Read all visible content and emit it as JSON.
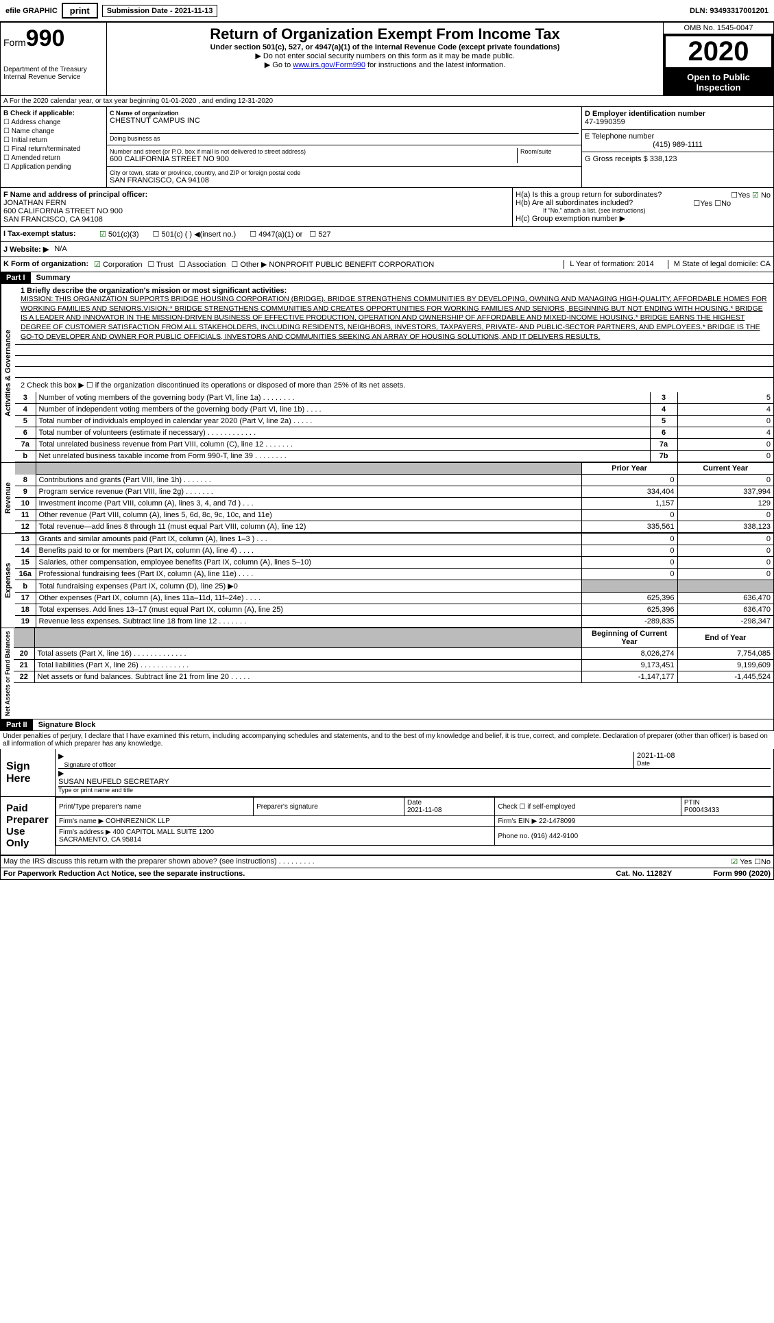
{
  "topbar": {
    "efile": "efile GRAPHIC",
    "print": "print",
    "sub_label": "Submission Date - 2021-11-13",
    "dln": "DLN: 93493317001201"
  },
  "header": {
    "form_prefix": "Form",
    "form_num": "990",
    "dept": "Department of the Treasury\nInternal Revenue Service",
    "title": "Return of Organization Exempt From Income Tax",
    "subtitle": "Under section 501(c), 527, or 4947(a)(1) of the Internal Revenue Code (except private foundations)",
    "note1": "▶ Do not enter social security numbers on this form as it may be made public.",
    "note2_pre": "▶ Go to ",
    "note2_link": "www.irs.gov/Form990",
    "note2_post": " for instructions and the latest information.",
    "omb": "OMB No. 1545-0047",
    "year": "2020",
    "open": "Open to Public Inspection"
  },
  "section_a": "A For the 2020 calendar year, or tax year beginning 01-01-2020   , and ending 12-31-2020",
  "col_b": {
    "label": "B Check if applicable:",
    "items": [
      "Address change",
      "Name change",
      "Initial return",
      "Final return/terminated",
      "Amended return",
      "Application pending"
    ]
  },
  "col_c": {
    "name_label": "C Name of organization",
    "name": "CHESTNUT CAMPUS INC",
    "dba_label": "Doing business as",
    "addr_label": "Number and street (or P.O. box if mail is not delivered to street address)",
    "addr": "600 CALIFORNIA STREET NO 900",
    "room_label": "Room/suite",
    "city_label": "City or town, state or province, country, and ZIP or foreign postal code",
    "city": "SAN FRANCISCO, CA  94108"
  },
  "col_d": {
    "ein_label": "D Employer identification number",
    "ein": "47-1990359",
    "phone_label": "E Telephone number",
    "phone": "(415) 989-1111",
    "gross_label": "G Gross receipts $ 338,123"
  },
  "f_section": {
    "label": "F  Name and address of principal officer:",
    "name": "JONATHAN FERN",
    "addr1": "600 CALIFORNIA STREET NO 900",
    "addr2": "SAN FRANCISCO, CA  94108"
  },
  "h_section": {
    "ha": "H(a)  Is this a group return for subordinates?",
    "hb": "H(b)  Are all subordinates included?",
    "hb_note": "If \"No,\" attach a list. (see instructions)",
    "hc": "H(c)  Group exemption number ▶",
    "yes": "Yes",
    "no": "No"
  },
  "status": {
    "label": "I    Tax-exempt status:",
    "opts": [
      "501(c)(3)",
      "501(c) (  ) ◀(insert no.)",
      "4947(a)(1) or",
      "527"
    ]
  },
  "website": {
    "label": "J   Website: ▶",
    "value": "N/A"
  },
  "k_org": {
    "label": "K Form of organization:",
    "corp": "Corporation",
    "trust": "Trust",
    "assoc": "Association",
    "other": "Other ▶",
    "other_val": "NONPROFIT PUBLIC BENEFIT CORPORATION",
    "l_label": "L Year of formation: 2014",
    "m_label": "M State of legal domicile: CA"
  },
  "part1": {
    "header": "Part I",
    "title": "Summary",
    "mission_label": "1   Briefly describe the organization's mission or most significant activities:",
    "mission": "MISSION: THIS ORGANIZATION SUPPORTS BRIDGE HOUSING CORPORATION (BRIDGE). BRIDGE STRENGTHENS COMMUNITIES BY DEVELOPING, OWNING AND MANAGING HIGH-QUALITY, AFFORDABLE HOMES FOR WORKING FAMILIES AND SENIORS.VISION:* BRIDGE STRENGTHENS COMMUNITIES AND CREATES OPPORTUNITIES FOR WORKING FAMILIES AND SENIORS, BEGINNING BUT NOT ENDING WITH HOUSING.* BRIDGE IS A LEADER AND INNOVATOR IN THE MISSION-DRIVEN BUSINESS OF EFFECTIVE PRODUCTION, OPERATION AND OWNERSHIP OF AFFORDABLE AND MIXED-INCOME HOUSING.* BRIDGE EARNS THE HIGHEST DEGREE OF CUSTOMER SATISFACTION FROM ALL STAKEHOLDERS, INCLUDING RESIDENTS, NEIGHBORS, INVESTORS, TAXPAYERS, PRIVATE- AND PUBLIC-SECTOR PARTNERS, AND EMPLOYEES.* BRIDGE IS THE GO-TO DEVELOPER AND OWNER FOR PUBLIC OFFICIALS, INVESTORS AND COMMUNITIES SEEKING AN ARRAY OF HOUSING SOLUTIONS, AND IT DELIVERS RESULTS.",
    "line2": "2   Check this box ▶ ☐ if the organization discontinued its operations or disposed of more than 25% of its net assets.",
    "vert_gov": "Activities & Governance",
    "vert_rev": "Revenue",
    "vert_exp": "Expenses",
    "vert_net": "Net Assets or Fund Balances"
  },
  "gov_rows": [
    {
      "n": "3",
      "label": "Number of voting members of the governing body (Part VI, line 1a)  .  .  .  .  .  .  .  .",
      "box": "3",
      "val": "5"
    },
    {
      "n": "4",
      "label": "Number of independent voting members of the governing body (Part VI, line 1b)  .  .  .  .",
      "box": "4",
      "val": "4"
    },
    {
      "n": "5",
      "label": "Total number of individuals employed in calendar year 2020 (Part V, line 2a)  .  .  .  .  .",
      "box": "5",
      "val": "0"
    },
    {
      "n": "6",
      "label": "Total number of volunteers (estimate if necessary)  .  .  .  .  .  .  .  .  .  .  .  .",
      "box": "6",
      "val": "4"
    },
    {
      "n": "7a",
      "label": "Total unrelated business revenue from Part VIII, column (C), line 12  .  .  .  .  .  .  .",
      "box": "7a",
      "val": "0"
    },
    {
      "n": "b",
      "label": "Net unrelated business taxable income from Form 990-T, line 39  .  .  .  .  .  .  .  .",
      "box": "7b",
      "val": "0"
    }
  ],
  "two_col_header": {
    "prior": "Prior Year",
    "current": "Current Year"
  },
  "rev_rows": [
    {
      "n": "8",
      "label": "Contributions and grants (Part VIII, line 1h)  .  .  .  .  .  .  .",
      "p": "0",
      "c": "0"
    },
    {
      "n": "9",
      "label": "Program service revenue (Part VIII, line 2g)  .  .  .  .  .  .  .",
      "p": "334,404",
      "c": "337,994"
    },
    {
      "n": "10",
      "label": "Investment income (Part VIII, column (A), lines 3, 4, and 7d )  .  .  .",
      "p": "1,157",
      "c": "129"
    },
    {
      "n": "11",
      "label": "Other revenue (Part VIII, column (A), lines 5, 6d, 8c, 9c, 10c, and 11e)",
      "p": "0",
      "c": "0"
    },
    {
      "n": "12",
      "label": "Total revenue—add lines 8 through 11 (must equal Part VIII, column (A), line 12)",
      "p": "335,561",
      "c": "338,123"
    }
  ],
  "exp_rows": [
    {
      "n": "13",
      "label": "Grants and similar amounts paid (Part IX, column (A), lines 1–3 )  .  .  .",
      "p": "0",
      "c": "0"
    },
    {
      "n": "14",
      "label": "Benefits paid to or for members (Part IX, column (A), line 4)  .  .  .  .",
      "p": "0",
      "c": "0"
    },
    {
      "n": "15",
      "label": "Salaries, other compensation, employee benefits (Part IX, column (A), lines 5–10)",
      "p": "0",
      "c": "0"
    },
    {
      "n": "16a",
      "label": "Professional fundraising fees (Part IX, column (A), line 11e)  .  .  .  .",
      "p": "0",
      "c": "0"
    },
    {
      "n": "b",
      "label": "Total fundraising expenses (Part IX, column (D), line 25) ▶0",
      "p": "grey",
      "c": "grey"
    },
    {
      "n": "17",
      "label": "Other expenses (Part IX, column (A), lines 11a–11d, 11f–24e)  .  .  .  .",
      "p": "625,396",
      "c": "636,470"
    },
    {
      "n": "18",
      "label": "Total expenses. Add lines 13–17 (must equal Part IX, column (A), line 25)",
      "p": "625,396",
      "c": "636,470"
    },
    {
      "n": "19",
      "label": "Revenue less expenses. Subtract line 18 from line 12  .  .  .  .  .  .  .",
      "p": "-289,835",
      "c": "-298,347"
    }
  ],
  "net_header": {
    "begin": "Beginning of Current Year",
    "end": "End of Year"
  },
  "net_rows": [
    {
      "n": "20",
      "label": "Total assets (Part X, line 16)  .  .  .  .  .  .  .  .  .  .  .  .  .",
      "p": "8,026,274",
      "c": "7,754,085"
    },
    {
      "n": "21",
      "label": "Total liabilities (Part X, line 26)  .  .  .  .  .  .  .  .  .  .  .  .",
      "p": "9,173,451",
      "c": "9,199,609"
    },
    {
      "n": "22",
      "label": "Net assets or fund balances. Subtract line 21 from line 20  .  .  .  .  .",
      "p": "-1,147,177",
      "c": "-1,445,524"
    }
  ],
  "part2": {
    "header": "Part II",
    "title": "Signature Block",
    "penalty": "Under penalties of perjury, I declare that I have examined this return, including accompanying schedules and statements, and to the best of my knowledge and belief, it is true, correct, and complete. Declaration of preparer (other than officer) is based on all information of which preparer has any knowledge."
  },
  "sign": {
    "label": "Sign Here",
    "sig_officer": "Signature of officer",
    "date": "2021-11-08",
    "date_label": "Date",
    "name": "SUSAN NEUFELD SECRETARY",
    "name_label": "Type or print name and title"
  },
  "prep": {
    "label": "Paid Preparer Use Only",
    "cols": [
      "Print/Type preparer's name",
      "Preparer's signature",
      "Date",
      "Check ☐ if self-employed",
      "PTIN"
    ],
    "date": "2021-11-08",
    "ptin": "P00043433",
    "firm_label": "Firm's name     ▶",
    "firm": "COHNREZNICK LLP",
    "ein_label": "Firm's EIN ▶",
    "ein": "22-1478099",
    "addr_label": "Firm's address ▶",
    "addr": "400 CAPITOL MALL SUITE 1200\nSACRAMENTO, CA   95814",
    "phone_label": "Phone no.",
    "phone": "(916) 442-9100"
  },
  "discuss": {
    "q": "May the IRS discuss this return with the preparer shown above? (see instructions)  .  .  .  .  .  .  .  .  .",
    "yes": "Yes",
    "no": "No"
  },
  "footer": {
    "left": "For Paperwork Reduction Act Notice, see the separate instructions.",
    "mid": "Cat. No. 11282Y",
    "right": "Form 990 (2020)"
  }
}
